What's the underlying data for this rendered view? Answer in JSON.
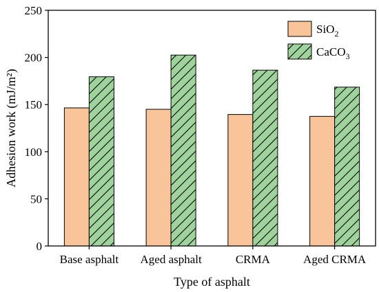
{
  "chart_data": {
    "type": "bar",
    "categories": [
      "Base asphalt",
      "Aged asphalt",
      "CRMA",
      "Aged CRMA"
    ],
    "series": [
      {
        "name": "SiO2",
        "label_main": "SiO",
        "label_sub": "2",
        "values": [
          146.5,
          145,
          139.5,
          137.5
        ],
        "color": "#f9c49a"
      },
      {
        "name": "CaCO3",
        "label_main": "CaCO",
        "label_sub": "3",
        "values": [
          179.5,
          202.5,
          186.5,
          168.5
        ],
        "color": "#9fd39c"
      }
    ],
    "xlabel": "Type of asphalt",
    "ylabel": "Adhesion work (mJ/m²)",
    "ylim": [
      0,
      250
    ],
    "yticks": [
      "0",
      "50",
      "100",
      "150",
      "200",
      "250"
    ],
    "legend_position": "top-right",
    "grid": false
  }
}
